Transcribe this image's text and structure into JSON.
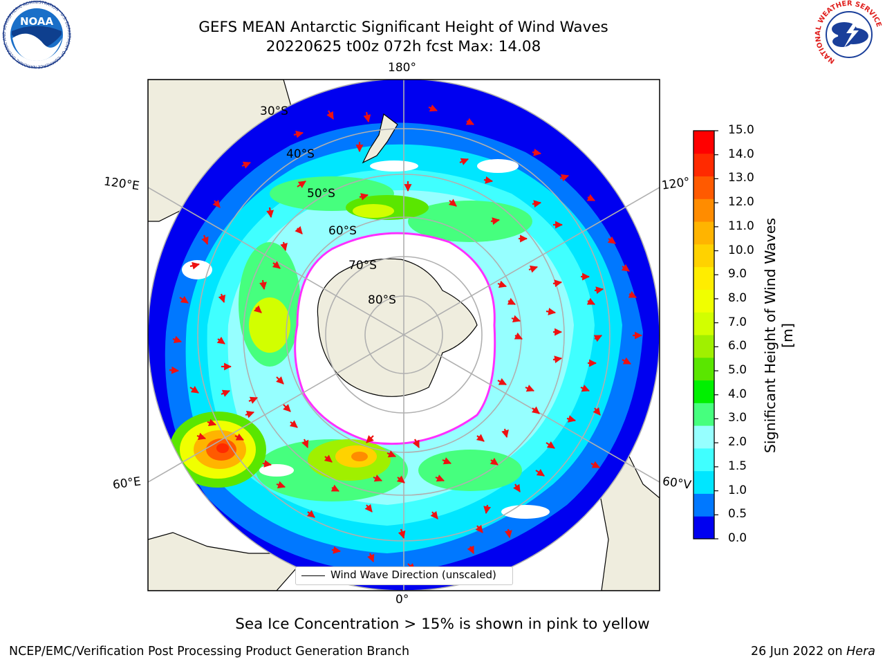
{
  "header": {
    "title_line1": "GEFS MEAN Antarctic Significant Height of Wind Waves",
    "title_line2": "20220625 t00z 072h fcst   Max: 14.08"
  },
  "logos": {
    "left": "noaa-logo",
    "right": "national-weather-service-logo",
    "noaa_text": "NOAA",
    "noaa_ring_text": "NATIONAL OCEANIC AND ATMOSPHERIC ADMINISTRATION · U.S. DEPARTMENT OF COMMERCE",
    "nws_ring_text": "NATIONAL WEATHER SERVICE"
  },
  "map": {
    "projection": "south-polar-stereographic",
    "longitude_labels": {
      "top": "180°",
      "bottom": "0°",
      "left_upper": "120°E",
      "left_lower": "60°E",
      "right_upper": "120°",
      "right_lower": "60°V"
    },
    "latitude_labels": [
      "30°S",
      "40°S",
      "50°S",
      "60°S",
      "70°S",
      "80°S"
    ],
    "legend_label": "Wind Wave Direction (unscaled)",
    "colors": {
      "land": "#efedde",
      "ocean_open": "#ffffff",
      "ice_edge": "#ff30ff",
      "arrow": "#ee1111",
      "grid": "#b0b0b0"
    }
  },
  "colorbar": {
    "label": "Significant Height of Wind Waves [m]",
    "ticks": [
      "15.0",
      "14.0",
      "13.0",
      "12.0",
      "11.0",
      "10.0",
      "9.0",
      "8.0",
      "7.0",
      "6.0",
      "5.0",
      "4.0",
      "3.0",
      "2.0",
      "1.5",
      "1.0",
      "0.5",
      "0.0"
    ],
    "colors": [
      "#0000f0",
      "#0078ff",
      "#00e6ff",
      "#40ffff",
      "#96ffff",
      "#46ff7e",
      "#00f000",
      "#5ae600",
      "#a0f000",
      "#d2ff00",
      "#f0ff00",
      "#ffed00",
      "#ffd200",
      "#ffb400",
      "#ff8c00",
      "#ff5a00",
      "#ff2a00",
      "#ff0000"
    ]
  },
  "caption": "Sea Ice Concentration > 15% is shown in pink to yellow",
  "footer": {
    "left": "NCEP/EMC/Verification Post Processing Product Generation Branch",
    "right_date": "26 Jun 2022 on ",
    "right_host": "Hera"
  }
}
